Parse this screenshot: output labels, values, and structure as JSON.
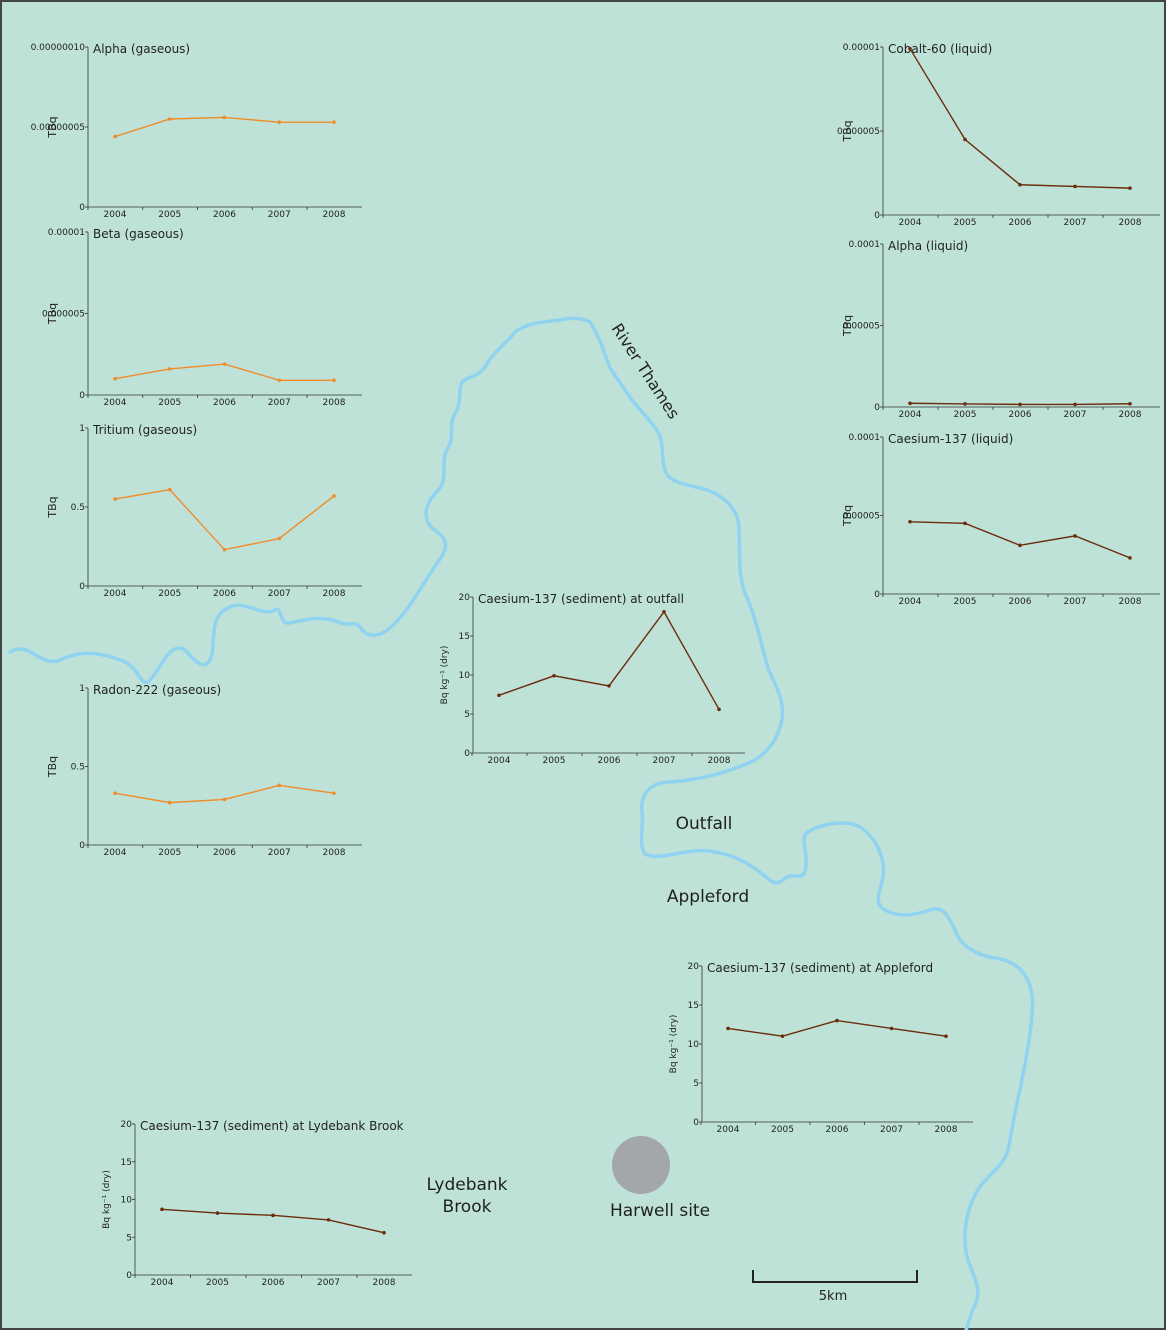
{
  "map": {
    "colors": {
      "land": "#bfe2d8",
      "river": "#8fd3f0",
      "border": "#444444",
      "site": "#a3a6ab"
    },
    "labels": {
      "river": "River Thames",
      "outfall": "Outfall",
      "appleford": "Appleford",
      "lydebank_line1": "Lydebank",
      "lydebank_line2": "Brook",
      "harwell": "Harwell site",
      "scale": "5km"
    }
  },
  "chart_data": [
    {
      "id": "alpha-gaseous",
      "type": "line",
      "title": "Alpha (gaseous)",
      "ylabel": "TBq",
      "color": "#f08c28",
      "categories": [
        "2004",
        "2005",
        "2006",
        "2007",
        "2008"
      ],
      "values": [
        4.4e-08,
        5.5e-08,
        5.6e-08,
        5.3e-08,
        5.3e-08
      ],
      "ylim": [
        0,
        1e-07
      ],
      "yticks": [
        0,
        5e-08,
        1e-07
      ],
      "yticklabels": [
        "0",
        "0.00000005",
        "0.00000010"
      ]
    },
    {
      "id": "beta-gaseous",
      "type": "line",
      "title": "Beta (gaseous)",
      "ylabel": "TBq",
      "color": "#f08c28",
      "categories": [
        "2004",
        "2005",
        "2006",
        "2007",
        "2008"
      ],
      "values": [
        1e-06,
        1.6e-06,
        1.9e-06,
        9e-07,
        9e-07
      ],
      "ylim": [
        0,
        1e-05
      ],
      "yticks": [
        0,
        5e-06,
        1e-05
      ],
      "yticklabels": [
        "0",
        "0.000005",
        "0.00001"
      ]
    },
    {
      "id": "tritium-gaseous",
      "type": "line",
      "title": "Tritium (gaseous)",
      "ylabel": "TBq",
      "color": "#f08c28",
      "categories": [
        "2004",
        "2005",
        "2006",
        "2007",
        "2008"
      ],
      "values": [
        0.55,
        0.61,
        0.23,
        0.3,
        0.57
      ],
      "ylim": [
        0,
        1
      ],
      "yticks": [
        0,
        0.5,
        1
      ],
      "yticklabels": [
        "0",
        "0.5",
        "1"
      ]
    },
    {
      "id": "radon-gaseous",
      "type": "line",
      "title": "Radon-222 (gaseous)",
      "ylabel": "TBq",
      "color": "#f08c28",
      "categories": [
        "2004",
        "2005",
        "2006",
        "2007",
        "2008"
      ],
      "values": [
        0.33,
        0.27,
        0.29,
        0.38,
        0.33
      ],
      "ylim": [
        0,
        1
      ],
      "yticks": [
        0,
        0.5,
        1
      ],
      "yticklabels": [
        "0",
        "0.5",
        "1"
      ]
    },
    {
      "id": "cobalt-liquid",
      "type": "line",
      "title": "Cobalt-60 (liquid)",
      "ylabel": "TBq",
      "color": "#6b2c0a",
      "categories": [
        "2004",
        "2005",
        "2006",
        "2007",
        "2008"
      ],
      "values": [
        9.9e-06,
        4.5e-06,
        1.8e-06,
        1.7e-06,
        1.6e-06
      ],
      "ylim": [
        0,
        1e-05
      ],
      "yticks": [
        0,
        5e-06,
        1e-05
      ],
      "yticklabels": [
        "0",
        "0.000005",
        "0.00001"
      ]
    },
    {
      "id": "alpha-liquid",
      "type": "line",
      "title": "Alpha (liquid)",
      "ylabel": "TBq",
      "color": "#6b2c0a",
      "categories": [
        "2004",
        "2005",
        "2006",
        "2007",
        "2008"
      ],
      "values": [
        2.3e-06,
        1.9e-06,
        1.6e-06,
        1.6e-06,
        2e-06
      ],
      "ylim": [
        0,
        0.0001
      ],
      "yticks": [
        0,
        5e-05,
        0.0001
      ],
      "yticklabels": [
        "0",
        "0.00005",
        "0.0001"
      ]
    },
    {
      "id": "caesium-liquid",
      "type": "line",
      "title": "Caesium-137 (liquid)",
      "ylabel": "TBq",
      "color": "#6b2c0a",
      "categories": [
        "2004",
        "2005",
        "2006",
        "2007",
        "2008"
      ],
      "values": [
        4.6e-05,
        4.5e-05,
        3.1e-05,
        3.7e-05,
        2.3e-05
      ],
      "ylim": [
        0,
        0.0001
      ],
      "yticks": [
        0,
        5e-05,
        0.0001
      ],
      "yticklabels": [
        "0",
        "0.00005",
        "0.0001"
      ]
    },
    {
      "id": "caesium-outfall",
      "type": "line",
      "title": "Caesium-137 (sediment) at outfall",
      "ylabel": "Bq kg⁻¹ (dry)",
      "color": "#6b2c0a",
      "categories": [
        "2004",
        "2005",
        "2006",
        "2007",
        "2008"
      ],
      "values": [
        7.4,
        9.9,
        8.6,
        18.1,
        5.6
      ],
      "ylim": [
        0,
        20
      ],
      "yticks": [
        0,
        5,
        10,
        15,
        20
      ],
      "yticklabels": [
        "0",
        "5",
        "10",
        "15",
        "20"
      ]
    },
    {
      "id": "caesium-appleford",
      "type": "line",
      "title": "Caesium-137  (sediment) at Appleford",
      "ylabel": "Bq kg⁻¹ (dry)",
      "color": "#6b2c0a",
      "categories": [
        "2004",
        "2005",
        "2006",
        "2007",
        "2008"
      ],
      "values": [
        12.0,
        11.0,
        13.0,
        12.0,
        11.0
      ],
      "ylim": [
        0,
        20
      ],
      "yticks": [
        0,
        5,
        10,
        15,
        20
      ],
      "yticklabels": [
        "0",
        "5",
        "10",
        "15",
        "20"
      ]
    },
    {
      "id": "caesium-lydebank",
      "type": "line",
      "title": "Caesium-137  (sediment) at Lydebank Brook",
      "ylabel": "Bq kg⁻¹ (dry)",
      "color": "#6b2c0a",
      "categories": [
        "2004",
        "2005",
        "2006",
        "2007",
        "2008"
      ],
      "values": [
        8.7,
        8.2,
        7.9,
        7.3,
        5.6
      ],
      "ylim": [
        0,
        20
      ],
      "yticks": [
        0,
        5,
        10,
        15,
        20
      ],
      "yticklabels": [
        "0",
        "5",
        "10",
        "15",
        "20"
      ]
    }
  ]
}
